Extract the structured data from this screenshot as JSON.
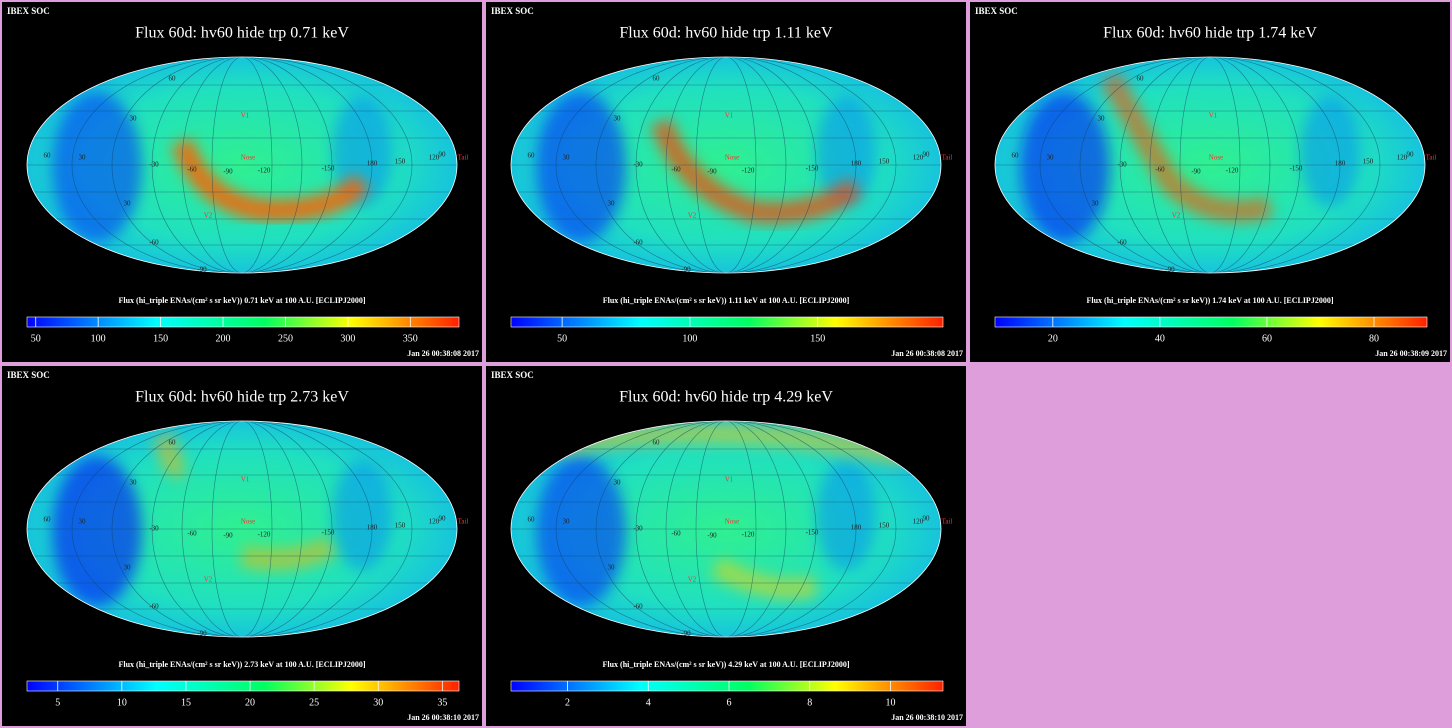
{
  "header": "IBEX SOC",
  "map_labels": [
    "60",
    "30",
    "V1",
    "60",
    "30",
    "-30",
    "-60",
    "-90",
    "Nose",
    "-120",
    "-150",
    "180",
    "150",
    "120",
    "90",
    "Tail",
    "V2",
    "30",
    "-60",
    "-90"
  ],
  "panels": [
    {
      "title": "Flux 60d: hv60 hide trp 0.71 keV",
      "colorbar_label": "Flux (hi_triple ENAs/(cm² s sr keV)) 0.71 keV at 100 A.U. [ECLIPJ2000]",
      "lim": [
        43,
        389
      ],
      "ticks": [
        50,
        100,
        150,
        200,
        250,
        300,
        350
      ],
      "timestamp": "Jan 26 00:38:08 2017"
    },
    {
      "title": "Flux 60d: hv60 hide trp 1.11 keV",
      "colorbar_label": "Flux (hi_triple ENAs/(cm² s sr keV)) 1.11 keV at 100 A.U. [ECLIPJ2000]",
      "lim": [
        30,
        199
      ],
      "ticks": [
        50,
        100,
        150
      ],
      "timestamp": "Jan 26 00:38:08 2017"
    },
    {
      "title": "Flux 60d: hv60 hide trp 1.74 keV",
      "colorbar_label": "Flux (hi_triple ENAs/(cm² s sr keV)) 1.74 keV at 100 A.U. [ECLIPJ2000]",
      "lim": [
        9.2,
        89.9
      ],
      "ticks": [
        20,
        40,
        60,
        80
      ],
      "timestamp": "Jan 26 00:38:09 2017"
    },
    {
      "title": "Flux 60d: hv60 hide trp 2.73 keV",
      "colorbar_label": "Flux (hi_triple ENAs/(cm² s sr keV)) 2.73 keV at 100 A.U. [ECLIPJ2000]",
      "lim": [
        2.6,
        36.3
      ],
      "ticks": [
        5,
        10,
        15,
        20,
        25,
        30,
        35
      ],
      "timestamp": "Jan 26 00:38:10 2017"
    },
    {
      "title": "Flux 60d: hv60 hide trp 4.29 keV",
      "colorbar_label": "Flux (hi_triple ENAs/(cm² s sr keV)) 4.29 keV at 100 A.U. [ECLIPJ2000]",
      "lim": [
        0.6,
        11.3
      ],
      "ticks": [
        2,
        4,
        6,
        8,
        10
      ],
      "timestamp": "Jan 26 00:38:10 2017"
    }
  ]
}
